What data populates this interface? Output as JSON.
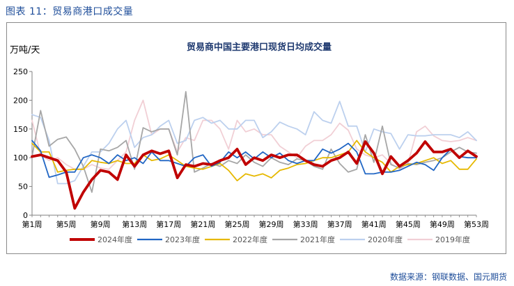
{
  "figure_caption": "图表  11：贸易商港口成交量",
  "source": "数据来源：钢联数据、国元期货",
  "chart_data": {
    "type": "line",
    "title": "贸易商中国主要港口现货日均成交量",
    "ylabel": "万吨/天",
    "ylim": [
      0,
      250
    ],
    "yticks": [
      0,
      50,
      100,
      150,
      200,
      250
    ],
    "xlim": [
      1,
      53
    ],
    "x": [
      1,
      2,
      3,
      4,
      5,
      6,
      7,
      8,
      9,
      10,
      11,
      12,
      13,
      14,
      15,
      16,
      17,
      18,
      19,
      20,
      21,
      22,
      23,
      24,
      25,
      26,
      27,
      28,
      29,
      30,
      31,
      32,
      33,
      34,
      35,
      36,
      37,
      38,
      39,
      40,
      41,
      42,
      43,
      44,
      45,
      46,
      47,
      48,
      49,
      50,
      51,
      52,
      53
    ],
    "xtick_labels": [
      "第1周",
      "第5周",
      "第9周",
      "第13周",
      "第17周",
      "第21周",
      "第25周",
      "第29周",
      "第33周",
      "第37周",
      "第41周",
      "第45周",
      "第49周",
      "第53周"
    ],
    "xtick_positions": [
      1,
      5,
      9,
      13,
      17,
      21,
      25,
      29,
      33,
      37,
      41,
      45,
      49,
      53
    ],
    "grid": false,
    "legend_position": "bottom",
    "series": [
      {
        "name": "2024年度",
        "color": "#c00000",
        "width": 3.8,
        "values": [
          102,
          105,
          100,
          95,
          75,
          12,
          40,
          62,
          78,
          75,
          62,
          105,
          85,
          105,
          112,
          107,
          112,
          65,
          88,
          85,
          90,
          88,
          95,
          100,
          115,
          88,
          100,
          95,
          105,
          100,
          105,
          105,
          95,
          88,
          85,
          95,
          100,
          110,
          90,
          128,
          108,
          72,
          102,
          85,
          95,
          108,
          128,
          110,
          110,
          115,
          100,
          112,
          102
        ]
      },
      {
        "name": "2023年度",
        "color": "#2166c4",
        "width": 1.8,
        "values": [
          130,
          112,
          66,
          70,
          75,
          75,
          100,
          105,
          100,
          90,
          105,
          95,
          100,
          90,
          110,
          95,
          95,
          90,
          85,
          100,
          105,
          85,
          92,
          110,
          100,
          110,
          98,
          110,
          100,
          108,
          95,
          90,
          95,
          95,
          115,
          108,
          115,
          125,
          110,
          72,
          72,
          75,
          75,
          78,
          85,
          92,
          88,
          78,
          100,
          115,
          102,
          100,
          100
        ]
      },
      {
        "name": "2022年度",
        "color": "#e6b800",
        "width": 1.8,
        "values": [
          125,
          110,
          110,
          75,
          78,
          80,
          80,
          95,
          92,
          90,
          95,
          90,
          90,
          105,
          95,
          98,
          105,
          95,
          85,
          82,
          80,
          85,
          90,
          78,
          60,
          72,
          68,
          72,
          65,
          78,
          82,
          88,
          90,
          95,
          100,
          100,
          105,
          110,
          130,
          110,
          100,
          92,
          75,
          85,
          88,
          90,
          95,
          100,
          90,
          95,
          80,
          80,
          98
        ]
      },
      {
        "name": "2021年度",
        "color": "#a6a6a6",
        "width": 1.8,
        "values": [
          102,
          182,
          120,
          132,
          136,
          115,
          85,
          40,
          115,
          112,
          118,
          130,
          80,
          152,
          145,
          150,
          150,
          105,
          215,
          75,
          82,
          90,
          85,
          95,
          90,
          105,
          92,
          85,
          100,
          92,
          88,
          98,
          95,
          85,
          80,
          115,
          90,
          75,
          80,
          140,
          92,
          155,
          88,
          82,
          90,
          88,
          92,
          95,
          100,
          110,
          118,
          110,
          108
        ]
      },
      {
        "name": "2020年度",
        "color": "#bcd0ee",
        "width": 1.8,
        "values": [
          175,
          170,
          130,
          55,
          55,
          60,
          85,
          110,
          110,
          125,
          150,
          165,
          118,
          135,
          140,
          155,
          165,
          125,
          130,
          165,
          170,
          160,
          165,
          150,
          150,
          165,
          165,
          135,
          145,
          162,
          155,
          150,
          140,
          180,
          165,
          160,
          198,
          155,
          155,
          110,
          150,
          145,
          142,
          115,
          140,
          138,
          138,
          140,
          140,
          140,
          135,
          145,
          130
        ]
      },
      {
        "name": "2019年度",
        "color": "#f1cfd5",
        "width": 1.8,
        "values": [
          165,
          105,
          95,
          100,
          88,
          80,
          80,
          88,
          82,
          80,
          95,
          110,
          165,
          200,
          140,
          150,
          150,
          110,
          135,
          130,
          165,
          165,
          150,
          115,
          165,
          145,
          150,
          140,
          140,
          120,
          110,
          100,
          120,
          130,
          130,
          140,
          160,
          148,
          115,
          105,
          100,
          105,
          90,
          80,
          90,
          145,
          155,
          138,
          130,
          128,
          130,
          135,
          130
        ]
      }
    ]
  }
}
